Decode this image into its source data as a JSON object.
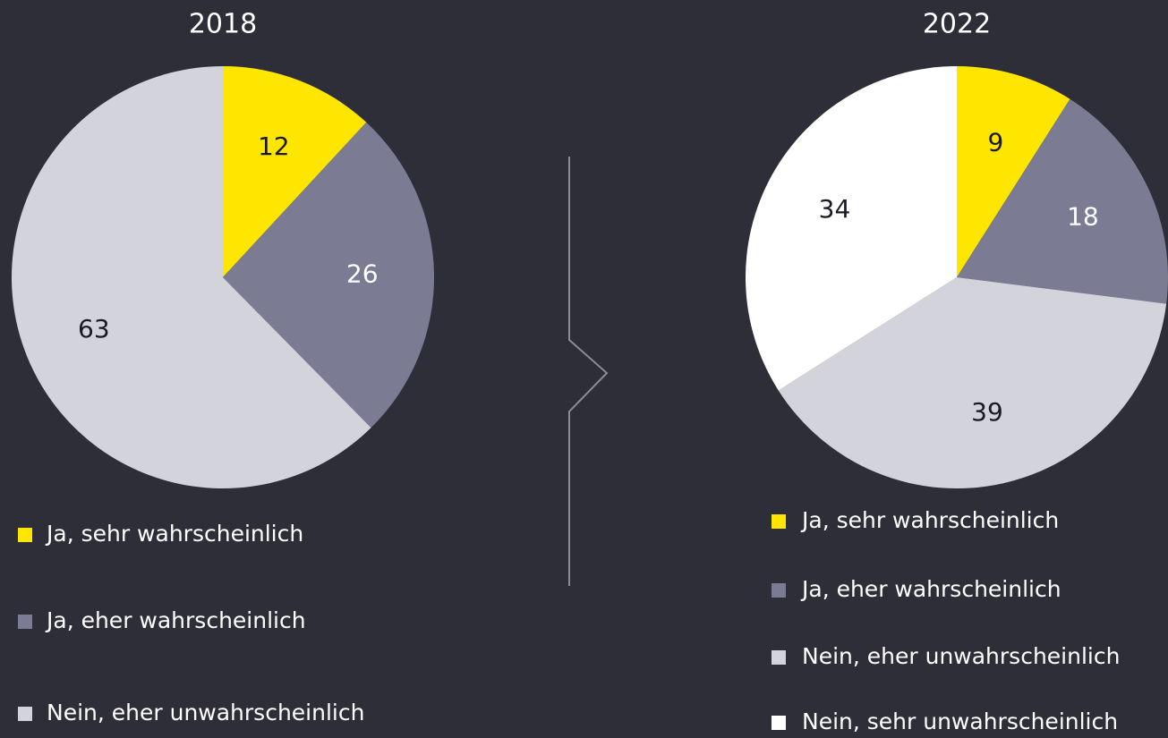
{
  "chart_data": [
    {
      "type": "pie",
      "title": "2018",
      "categories": [
        "Ja, sehr wahrscheinlich",
        "Ja, eher wahrscheinlich",
        "Nein, eher unwahrscheinlich"
      ],
      "values": [
        12,
        26,
        63
      ],
      "colors": [
        "#ffe600",
        "#7b7b93",
        "#d3d3db"
      ]
    },
    {
      "type": "pie",
      "title": "2022",
      "categories": [
        "Ja, sehr wahrscheinlich",
        "Ja, eher wahrscheinlich",
        "Nein, eher unwahrscheinlich",
        "Nein, sehr unwahrscheinlich"
      ],
      "values": [
        9,
        18,
        39,
        34
      ],
      "colors": [
        "#ffe600",
        "#7b7b93",
        "#d3d3db",
        "#ffffff"
      ]
    }
  ]
}
